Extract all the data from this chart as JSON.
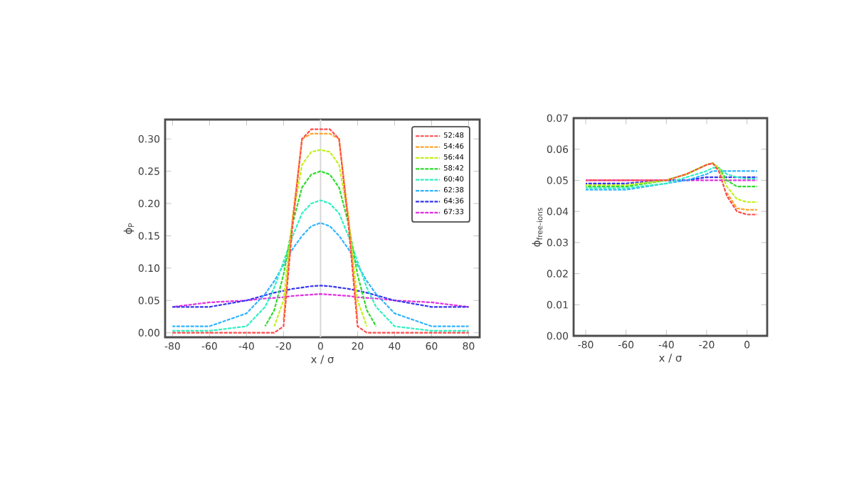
{
  "chart_data": [
    {
      "type": "line",
      "xlabel": "x / σ",
      "ylabel": "ϕ$_{P}$",
      "xlim": [
        -84,
        86
      ],
      "ylim": [
        -0.007,
        0.33
      ],
      "xticks": [
        -80,
        -60,
        -40,
        -20,
        0,
        20,
        40,
        60,
        80
      ],
      "yticks": [
        {
          "value": 0,
          "label": "0.00"
        },
        {
          "value": 0.05,
          "label": "0.05"
        },
        {
          "value": 0.1,
          "label": "0.10"
        },
        {
          "value": 0.15,
          "label": "0.15"
        },
        {
          "value": 0.2,
          "label": "0.20"
        },
        {
          "value": 0.25,
          "label": "0.25"
        },
        {
          "value": 0.3,
          "label": "0.30"
        }
      ],
      "legend": "top right",
      "line_style": "dashed",
      "ref_lines": [
        {
          "axis": "x",
          "value": 0,
          "color": "#d8d8d8"
        }
      ],
      "x": [
        -80,
        -60,
        -40,
        -30,
        -25,
        -20,
        -15,
        -10,
        -5,
        0,
        5,
        10,
        15,
        20,
        25,
        30,
        40,
        60,
        80
      ],
      "series": [
        {
          "name": "52:48",
          "color": "#ff4a4a",
          "values": [
            0,
            0,
            0,
            0,
            0,
            0.01,
            0.17,
            0.3,
            0.315,
            0.315,
            0.315,
            0.3,
            0.17,
            0.01,
            0,
            0,
            0,
            0,
            0
          ]
        },
        {
          "name": "54:46",
          "color": "#ffa52a",
          "values": [
            null,
            null,
            null,
            null,
            null,
            0.02,
            0.18,
            0.3,
            0.308,
            0.308,
            0.308,
            0.3,
            0.18,
            0.02,
            null,
            null,
            null,
            null,
            null
          ]
        },
        {
          "name": "56:44",
          "color": "#c2f01e",
          "values": [
            null,
            null,
            null,
            null,
            0.01,
            0.05,
            0.18,
            0.26,
            0.28,
            0.283,
            0.28,
            0.26,
            0.18,
            0.05,
            0.01,
            null,
            null,
            null,
            null
          ]
        },
        {
          "name": "58:42",
          "color": "#2edc2e",
          "values": [
            null,
            null,
            null,
            0.01,
            0.035,
            0.09,
            0.17,
            0.225,
            0.245,
            0.25,
            0.245,
            0.225,
            0.17,
            0.09,
            0.035,
            0.01,
            null,
            null,
            null
          ]
        },
        {
          "name": "60:40",
          "color": "#2ef0c0",
          "values": [
            0.003,
            0.003,
            0.01,
            0.04,
            0.07,
            0.11,
            0.15,
            0.185,
            0.2,
            0.205,
            0.2,
            0.185,
            0.15,
            0.11,
            0.07,
            0.04,
            0.01,
            0.003,
            0.003
          ]
        },
        {
          "name": "62:38",
          "color": "#30b4ff",
          "values": [
            0.01,
            0.01,
            0.03,
            0.06,
            0.08,
            0.105,
            0.13,
            0.15,
            0.165,
            0.17,
            0.165,
            0.15,
            0.13,
            0.105,
            0.08,
            0.06,
            0.03,
            0.01,
            0.01
          ]
        },
        {
          "name": "64:36",
          "color": "#3434f0",
          "values": [
            0.04,
            0.04,
            0.05,
            0.058,
            0.062,
            0.065,
            0.068,
            0.07,
            0.072,
            0.073,
            0.072,
            0.07,
            0.068,
            0.065,
            0.062,
            0.058,
            0.05,
            0.04,
            0.04
          ]
        },
        {
          "name": "67:33",
          "color": "#e030e0",
          "values": [
            0.04,
            0.047,
            0.05,
            0.053,
            0.054,
            0.055,
            0.057,
            0.058,
            0.059,
            0.06,
            0.059,
            0.058,
            0.057,
            0.055,
            0.054,
            0.053,
            0.05,
            0.047,
            0.04
          ]
        }
      ]
    },
    {
      "type": "line",
      "xlabel": "x / σ",
      "ylabel": "ϕ$_{free-ions}$",
      "xlim": [
        -86,
        10
      ],
      "ylim": [
        0,
        0.07
      ],
      "xticks": [
        -80,
        -60,
        -40,
        -20,
        0
      ],
      "yticks": [
        {
          "value": 0,
          "label": "0.00"
        },
        {
          "value": 0.01,
          "label": "0.01"
        },
        {
          "value": 0.02,
          "label": "0.02"
        },
        {
          "value": 0.03,
          "label": "0.03"
        },
        {
          "value": 0.04,
          "label": "0.04"
        },
        {
          "value": 0.05,
          "label": "0.05"
        },
        {
          "value": 0.06,
          "label": "0.06"
        },
        {
          "value": 0.07,
          "label": "0.07"
        }
      ],
      "line_style": "dashed",
      "x": [
        -80,
        -60,
        -40,
        -30,
        -20,
        -17,
        -14,
        -10,
        -5,
        0,
        5
      ],
      "series": [
        {
          "color": "#ff4a4a",
          "values": [
            0.05,
            0.05,
            0.05,
            0.052,
            0.055,
            0.0555,
            0.053,
            0.045,
            0.04,
            0.039,
            0.039
          ]
        },
        {
          "color": "#ffa52a",
          "values": [
            null,
            null,
            null,
            null,
            null,
            null,
            null,
            0.046,
            0.041,
            0.0405,
            0.0405
          ]
        },
        {
          "color": "#c2f01e",
          "values": [
            0.0485,
            0.0485,
            0.05,
            0.052,
            0.055,
            0.0555,
            0.054,
            0.048,
            0.044,
            0.043,
            0.043
          ]
        },
        {
          "color": "#2edc2e",
          "values": [
            0.048,
            0.048,
            0.05,
            0.052,
            0.055,
            0.0555,
            0.054,
            0.05,
            0.048,
            0.048,
            0.048
          ]
        },
        {
          "color": "#2ef0c0",
          "values": [
            0.0475,
            0.0475,
            0.049,
            0.051,
            0.053,
            0.054,
            0.054,
            0.052,
            0.051,
            0.0505,
            0.0505
          ]
        },
        {
          "color": "#30b4ff",
          "values": [
            0.047,
            0.047,
            0.049,
            0.05,
            0.052,
            0.053,
            0.053,
            0.053,
            0.053,
            0.053,
            0.053
          ]
        },
        {
          "color": "#3434f0",
          "values": [
            0.049,
            0.049,
            0.05,
            0.05,
            0.051,
            0.051,
            0.051,
            0.051,
            0.051,
            0.051,
            0.051
          ]
        },
        {
          "color": "#e030e0",
          "values": [
            0.05,
            0.05,
            0.05,
            0.05,
            0.05,
            0.05,
            0.05,
            0.05,
            0.05,
            0.05,
            0.05
          ]
        }
      ]
    }
  ]
}
